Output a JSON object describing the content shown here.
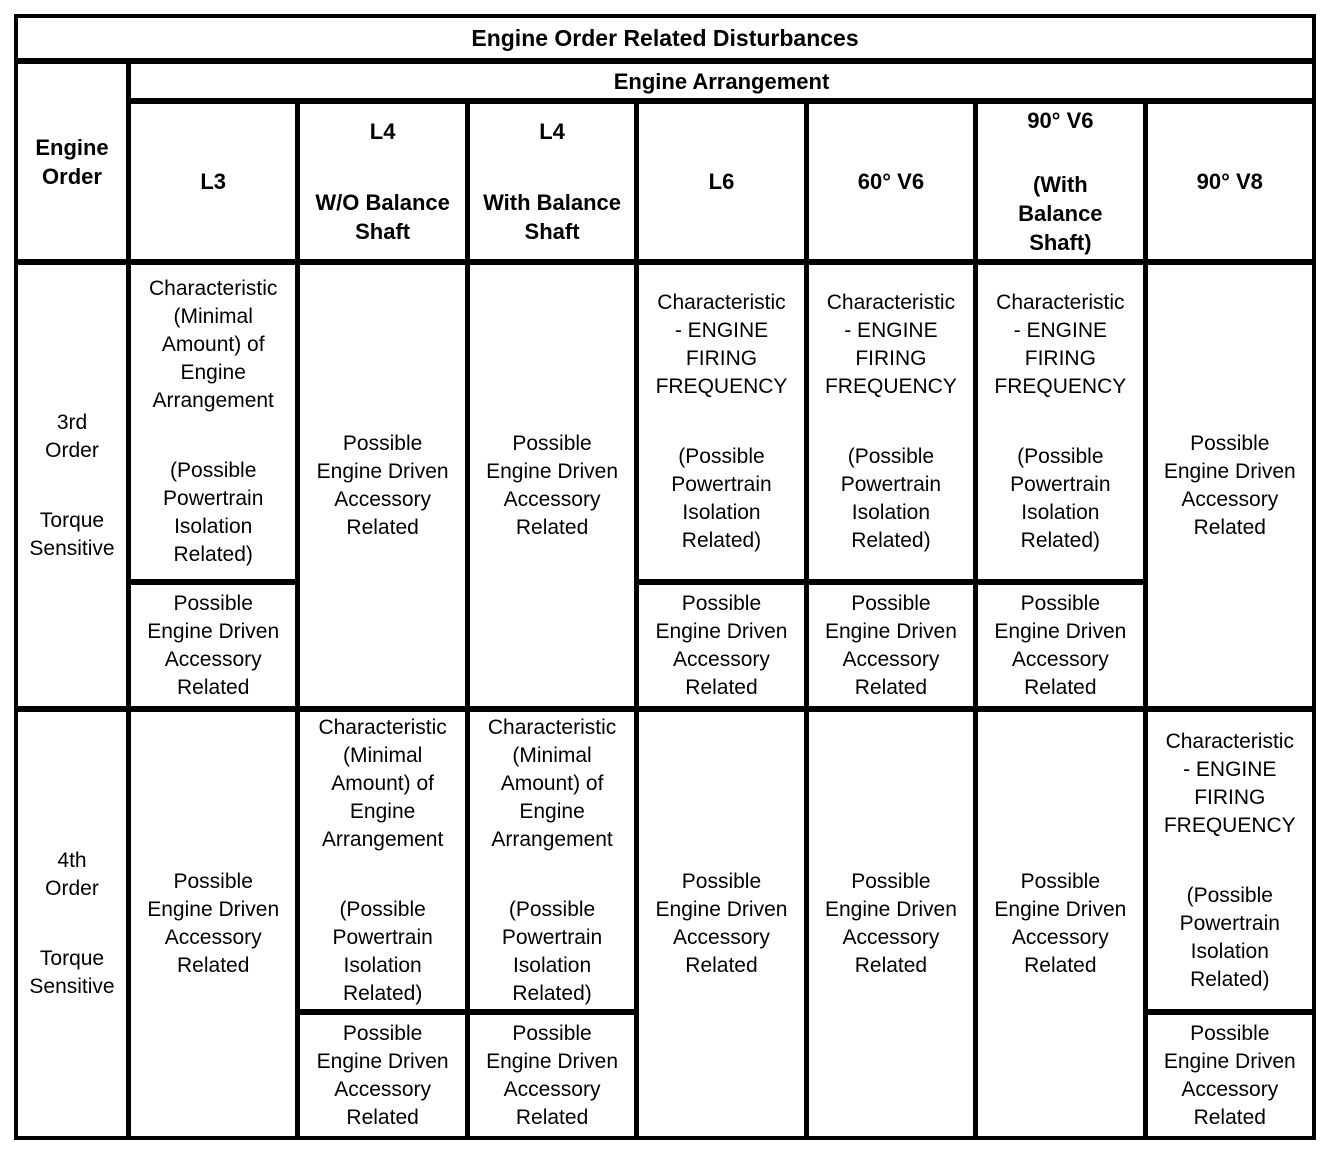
{
  "colors": {
    "background": "#ffffff",
    "text": "#000000",
    "border": "#000000"
  },
  "title": "Engine Order Related Disturbances",
  "arrangement_header": "Engine Arrangement",
  "row_axis_header": "Engine\nOrder",
  "columns": [
    {
      "label": "L3",
      "sublabel": ""
    },
    {
      "label": "L4",
      "sublabel": "W/O Balance\nShaft"
    },
    {
      "label": "L4",
      "sublabel": "With Balance\nShaft"
    },
    {
      "label": "L6",
      "sublabel": ""
    },
    {
      "label": "60° V6",
      "sublabel": ""
    },
    {
      "label": "90° V6",
      "sublabel": "(With\nBalance\nShaft)"
    },
    {
      "label": "90° V8",
      "sublabel": ""
    }
  ],
  "rows": [
    {
      "label": "3rd\nOrder",
      "sublabel": "Torque\nSensitive",
      "cells": [
        {
          "type": "split",
          "top_para1": "Characteristic\n(Minimal\nAmount) of\nEngine\nArrangement",
          "top_para2": "(Possible\nPowertrain\nIsolation\nRelated)",
          "bottom": "Possible\nEngine Driven\nAccessory\nRelated"
        },
        {
          "type": "single",
          "text": "Possible\nEngine Driven\nAccessory\nRelated"
        },
        {
          "type": "single",
          "text": "Possible\nEngine Driven\nAccessory\nRelated"
        },
        {
          "type": "split",
          "top_para1": "Characteristic\n- ENGINE\nFIRING\nFREQUENCY",
          "top_para2": "(Possible\nPowertrain\nIsolation\nRelated)",
          "bottom": "Possible\nEngine Driven\nAccessory\nRelated"
        },
        {
          "type": "split",
          "top_para1": "Characteristic\n- ENGINE\nFIRING\nFREQUENCY",
          "top_para2": "(Possible\nPowertrain\nIsolation\nRelated)",
          "bottom": "Possible\nEngine Driven\nAccessory\nRelated"
        },
        {
          "type": "split",
          "top_para1": "Characteristic\n- ENGINE\nFIRING\nFREQUENCY",
          "top_para2": "(Possible\nPowertrain\nIsolation\nRelated)",
          "bottom": "Possible\nEngine Driven\nAccessory\nRelated"
        },
        {
          "type": "single",
          "text": "Possible\nEngine Driven\nAccessory\nRelated"
        }
      ]
    },
    {
      "label": "4th\nOrder",
      "sublabel": "Torque\nSensitive",
      "cells": [
        {
          "type": "single",
          "text": "Possible\nEngine Driven\nAccessory\nRelated"
        },
        {
          "type": "split",
          "top_para1": "Characteristic\n(Minimal\nAmount) of\nEngine\nArrangement",
          "top_para2": "(Possible\nPowertrain\nIsolation\nRelated)",
          "bottom": "Possible\nEngine Driven\nAccessory\nRelated"
        },
        {
          "type": "split",
          "top_para1": "Characteristic\n(Minimal\nAmount) of\nEngine\nArrangement",
          "top_para2": "(Possible\nPowertrain\nIsolation\nRelated)",
          "bottom": "Possible\nEngine Driven\nAccessory\nRelated"
        },
        {
          "type": "single",
          "text": "Possible\nEngine Driven\nAccessory\nRelated"
        },
        {
          "type": "single",
          "text": "Possible\nEngine Driven\nAccessory\nRelated"
        },
        {
          "type": "single",
          "text": "Possible\nEngine Driven\nAccessory\nRelated"
        },
        {
          "type": "split",
          "top_para1": "Characteristic\n- ENGINE\nFIRING\nFREQUENCY",
          "top_para2": "(Possible\nPowertrain\nIsolation\nRelated)",
          "bottom": "Possible\nEngine Driven\nAccessory\nRelated"
        }
      ]
    }
  ]
}
